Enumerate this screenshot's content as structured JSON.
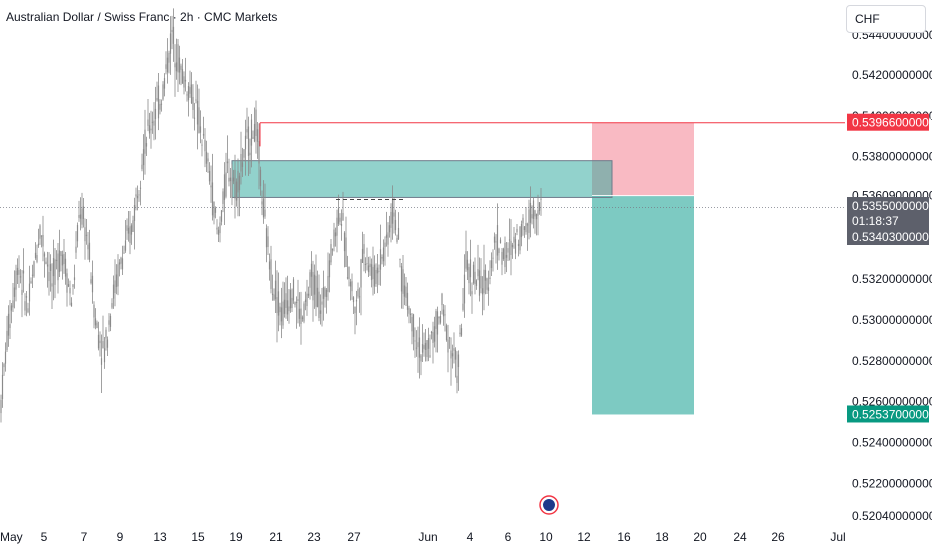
{
  "header": {
    "title": "Australian Dollar / Swiss Franc · 2h · CMC Markets",
    "currency_button": "CHF"
  },
  "chart_data": {
    "type": "candlestick",
    "title": "Australian Dollar / Swiss Franc · 2h · CMC Markets",
    "ylim": [
      0.5203,
      0.5442
    ],
    "y_ticks": [
      "0.54200000000",
      "0.54000000000",
      "0.53800000000",
      "0.53609000000",
      "0.53200000000",
      "0.53000000000",
      "0.52800000000",
      "0.52600000000",
      "0.52400000000",
      "0.52200000000",
      "0.52040000000"
    ],
    "y_tick_values": [
      0.542,
      0.54,
      0.538,
      0.53609,
      0.532,
      0.53,
      0.528,
      0.526,
      0.524,
      0.522,
      0.5204
    ],
    "y_top_partial": "0.54400000000",
    "x_ticks": [
      {
        "label": "May",
        "idx": 0
      },
      {
        "label": "5",
        "idx": 44
      },
      {
        "label": "7",
        "idx": 84
      },
      {
        "label": "9",
        "idx": 120
      },
      {
        "label": "13",
        "idx": 160
      },
      {
        "label": "15",
        "idx": 198
      },
      {
        "label": "19",
        "idx": 236
      },
      {
        "label": "21",
        "idx": 276
      },
      {
        "label": "23",
        "idx": 314
      },
      {
        "label": "27",
        "idx": 354
      },
      {
        "label": "Jun",
        "idx": 428
      },
      {
        "label": "4",
        "idx": 470
      },
      {
        "label": "6",
        "idx": 508
      },
      {
        "label": "10",
        "idx": 546
      },
      {
        "label": "12",
        "idx": 584
      },
      {
        "label": "16",
        "idx": 624
      },
      {
        "label": "18",
        "idx": 662
      },
      {
        "label": "20",
        "idx": 700
      },
      {
        "label": "24",
        "idx": 740
      },
      {
        "label": "26",
        "idx": 778
      },
      {
        "label": "Jul",
        "idx": 838
      }
    ],
    "price_path": [
      [
        0,
        0.5255
      ],
      [
        8,
        0.5295
      ],
      [
        18,
        0.5328
      ],
      [
        28,
        0.5305
      ],
      [
        40,
        0.5345
      ],
      [
        52,
        0.5318
      ],
      [
        62,
        0.5335
      ],
      [
        72,
        0.5308
      ],
      [
        80,
        0.5355
      ],
      [
        88,
        0.5338
      ],
      [
        96,
        0.5298
      ],
      [
        104,
        0.5283
      ],
      [
        112,
        0.531
      ],
      [
        122,
        0.533
      ],
      [
        132,
        0.5345
      ],
      [
        142,
        0.538
      ],
      [
        152,
        0.5398
      ],
      [
        162,
        0.541
      ],
      [
        172,
        0.544
      ],
      [
        182,
        0.542
      ],
      [
        192,
        0.541
      ],
      [
        200,
        0.5395
      ],
      [
        210,
        0.537
      ],
      [
        218,
        0.534
      ],
      [
        228,
        0.5375
      ],
      [
        236,
        0.5365
      ],
      [
        246,
        0.5385
      ],
      [
        256,
        0.5395
      ],
      [
        264,
        0.535
      ],
      [
        272,
        0.532
      ],
      [
        282,
        0.5303
      ],
      [
        292,
        0.5315
      ],
      [
        302,
        0.53
      ],
      [
        312,
        0.532
      ],
      [
        322,
        0.5305
      ],
      [
        332,
        0.5335
      ],
      [
        340,
        0.5355
      ],
      [
        348,
        0.5325
      ],
      [
        356,
        0.5305
      ],
      [
        364,
        0.5335
      ],
      [
        374,
        0.532
      ],
      [
        384,
        0.5335
      ],
      [
        394,
        0.5355
      ],
      [
        402,
        0.532
      ],
      [
        412,
        0.53
      ],
      [
        422,
        0.5282
      ],
      [
        432,
        0.529
      ],
      [
        442,
        0.5305
      ],
      [
        452,
        0.5285
      ],
      [
        458,
        0.5275
      ],
      [
        466,
        0.5325
      ],
      [
        476,
        0.532
      ],
      [
        486,
        0.5315
      ],
      [
        496,
        0.534
      ],
      [
        506,
        0.533
      ],
      [
        516,
        0.534
      ],
      [
        526,
        0.5348
      ],
      [
        536,
        0.5356
      ],
      [
        541,
        0.5355
      ]
    ],
    "annotations": {
      "resistance_line": {
        "price": 0.53966,
        "x_start_idx": 260,
        "color": "#f23645"
      },
      "supply_zone": {
        "price_top": 0.5378,
        "price_bottom": 0.536,
        "x_start_idx": 232,
        "x_end_idx": 612,
        "color": "#26a69a"
      },
      "short_position": {
        "entry": 0.53609,
        "stop": 0.53966,
        "target": 0.52537,
        "x_start_idx": 592,
        "x_end_idx": 694
      },
      "dashed_level": {
        "price": 0.5359,
        "x_start_idx": 336,
        "x_end_idx": 404
      }
    },
    "price_tags": [
      {
        "label": "0.53966000000",
        "price": 0.53966,
        "color": "#f23645"
      },
      {
        "label": "0.53550000000",
        "price": 0.5355,
        "color": "#5d606b"
      },
      {
        "label": "01:18:37",
        "price": 0.53455,
        "color": "#5d606b"
      },
      {
        "label": "0.53403000000",
        "price": 0.53403,
        "color": "#5d606b"
      },
      {
        "label": "0.52537000000",
        "price": 0.52537,
        "color": "#089981"
      }
    ],
    "current_price": 0.5355,
    "event_marker": {
      "idx": 549,
      "label": "AU flag"
    }
  },
  "colors": {
    "candle": "#8a8a8a",
    "zone_green": "#26a69a",
    "zone_red": "#f23645",
    "grid": "#e0e3eb"
  }
}
